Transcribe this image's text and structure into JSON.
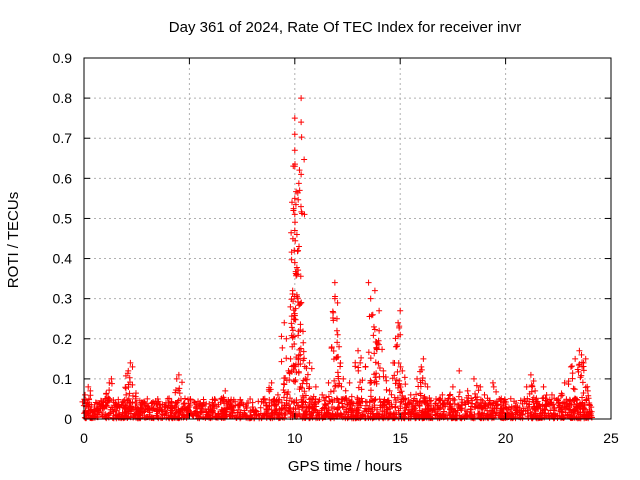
{
  "chart_data": {
    "type": "scatter",
    "title": "Day 361 of 2024, Rate Of TEC Index for receiver invr",
    "xlabel": "GPS time / hours",
    "ylabel": "ROTI / TECUs",
    "xlim": [
      0,
      25
    ],
    "ylim": [
      0,
      0.9
    ],
    "xticks": [
      0,
      5,
      10,
      15,
      20,
      25
    ],
    "yticks": [
      0,
      0.1,
      0.2,
      0.3,
      0.4,
      0.5,
      0.6,
      0.7,
      0.8,
      0.9
    ],
    "xtick_labels": [
      "0",
      "5",
      "10",
      "15",
      "20",
      "25"
    ],
    "ytick_labels": [
      "0",
      "0.1",
      "0.2",
      "0.3",
      "0.4",
      "0.5",
      "0.6",
      "0.7",
      "0.8",
      "0.9"
    ],
    "grid": true,
    "marker": "+",
    "color": "#ff0000",
    "series": [
      {
        "name": "ROTI",
        "points": [
          [
            0.05,
            0.06
          ],
          [
            0.2,
            0.08
          ],
          [
            0.3,
            0.07
          ],
          [
            0.5,
            0.03
          ],
          [
            1.0,
            0.05
          ],
          [
            1.2,
            0.09
          ],
          [
            1.3,
            0.1
          ],
          [
            1.5,
            0.04
          ],
          [
            2.0,
            0.06
          ],
          [
            2.1,
            0.12
          ],
          [
            2.2,
            0.14
          ],
          [
            2.3,
            0.13
          ],
          [
            2.5,
            0.04
          ],
          [
            3.0,
            0.03
          ],
          [
            3.5,
            0.05
          ],
          [
            4.0,
            0.04
          ],
          [
            4.4,
            0.1
          ],
          [
            4.5,
            0.11
          ],
          [
            4.6,
            0.05
          ],
          [
            5.0,
            0.03
          ],
          [
            5.5,
            0.04
          ],
          [
            6.0,
            0.03
          ],
          [
            6.5,
            0.05
          ],
          [
            6.7,
            0.07
          ],
          [
            7.0,
            0.03
          ],
          [
            7.5,
            0.04
          ],
          [
            8.0,
            0.03
          ],
          [
            8.5,
            0.05
          ],
          [
            8.9,
            0.09
          ],
          [
            9.2,
            0.06
          ],
          [
            9.5,
            0.24
          ],
          [
            9.6,
            0.2
          ],
          [
            9.7,
            0.12
          ],
          [
            9.8,
            0.15
          ],
          [
            9.9,
            0.32
          ],
          [
            10.0,
            0.39
          ],
          [
            10.0,
            0.47
          ],
          [
            10.0,
            0.51
          ],
          [
            10.0,
            0.55
          ],
          [
            10.0,
            0.63
          ],
          [
            10.0,
            0.67
          ],
          [
            10.0,
            0.71
          ],
          [
            10.0,
            0.75
          ],
          [
            10.1,
            0.46
          ],
          [
            10.1,
            0.36
          ],
          [
            10.2,
            0.43
          ],
          [
            10.3,
            0.74
          ],
          [
            10.3,
            0.61
          ],
          [
            10.3,
            0.8
          ],
          [
            10.3,
            0.29
          ],
          [
            10.4,
            0.19
          ],
          [
            10.5,
            0.1
          ],
          [
            10.7,
            0.14
          ],
          [
            11.0,
            0.08
          ],
          [
            11.3,
            0.06
          ],
          [
            11.6,
            0.09
          ],
          [
            11.9,
            0.34
          ],
          [
            11.9,
            0.3
          ],
          [
            12.0,
            0.25
          ],
          [
            12.0,
            0.22
          ],
          [
            12.1,
            0.18
          ],
          [
            12.3,
            0.1
          ],
          [
            12.6,
            0.09
          ],
          [
            13.0,
            0.17
          ],
          [
            13.1,
            0.14
          ],
          [
            13.5,
            0.34
          ],
          [
            13.6,
            0.3
          ],
          [
            13.7,
            0.26
          ],
          [
            13.8,
            0.32
          ],
          [
            14.0,
            0.27
          ],
          [
            14.0,
            0.22
          ],
          [
            14.2,
            0.12
          ],
          [
            14.5,
            0.07
          ],
          [
            14.8,
            0.18
          ],
          [
            14.9,
            0.24
          ],
          [
            15.0,
            0.27
          ],
          [
            15.0,
            0.21
          ],
          [
            15.1,
            0.12
          ],
          [
            15.5,
            0.06
          ],
          [
            15.8,
            0.1
          ],
          [
            16.0,
            0.13
          ],
          [
            16.1,
            0.15
          ],
          [
            16.3,
            0.08
          ],
          [
            16.7,
            0.05
          ],
          [
            17.0,
            0.06
          ],
          [
            17.5,
            0.08
          ],
          [
            17.8,
            0.12
          ],
          [
            18.2,
            0.07
          ],
          [
            18.5,
            0.1
          ],
          [
            18.8,
            0.08
          ],
          [
            19.0,
            0.06
          ],
          [
            19.4,
            0.09
          ],
          [
            19.7,
            0.05
          ],
          [
            20.0,
            0.03
          ],
          [
            20.5,
            0.04
          ],
          [
            21.0,
            0.08
          ],
          [
            21.2,
            0.11
          ],
          [
            21.4,
            0.07
          ],
          [
            21.8,
            0.08
          ],
          [
            22.2,
            0.06
          ],
          [
            22.5,
            0.05
          ],
          [
            22.8,
            0.09
          ],
          [
            23.1,
            0.13
          ],
          [
            23.3,
            0.15
          ],
          [
            23.5,
            0.17
          ],
          [
            23.6,
            0.16
          ],
          [
            23.7,
            0.14
          ],
          [
            23.8,
            0.15
          ],
          [
            23.9,
            0.07
          ],
          [
            24.0,
            0.02
          ]
        ],
        "background_band": {
          "x_range": [
            0,
            24.1
          ],
          "typical_max": 0.05
        }
      }
    ]
  }
}
